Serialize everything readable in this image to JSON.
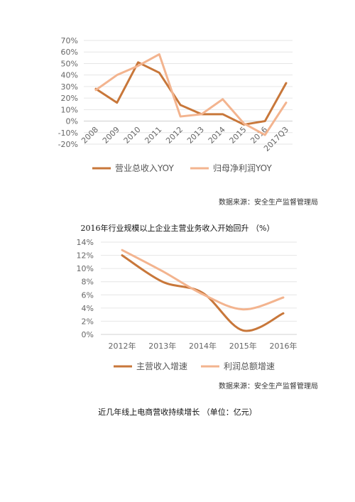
{
  "chart_data": [
    {
      "type": "line",
      "categories": [
        "2008",
        "2009",
        "2010",
        "2011",
        "2012",
        "2013",
        "2014",
        "2015",
        "2016",
        "2017Q3"
      ],
      "series": [
        {
          "name": "营业总收入YOY",
          "color": "#c8773a",
          "values": [
            28,
            16,
            51,
            42,
            14,
            6,
            6,
            -3,
            0,
            33
          ]
        },
        {
          "name": "归母净利润YOY",
          "color": "#f3b48f",
          "values": [
            27,
            40,
            48,
            58,
            4,
            6,
            19,
            -2,
            -12,
            16
          ]
        }
      ],
      "yticks": [
        "70%",
        "60%",
        "50%",
        "40%",
        "30%",
        "20%",
        "10%",
        "0%",
        "-10%",
        "-20%"
      ],
      "ylim": [
        -20,
        70
      ],
      "legend_position": "bottom"
    },
    {
      "type": "line",
      "categories": [
        "2012年",
        "2013年",
        "2014年",
        "2015年",
        "2016年"
      ],
      "series": [
        {
          "name": "主营收入增速",
          "color": "#c8773a",
          "values": [
            12.0,
            8.0,
            6.3,
            0.6,
            3.2
          ]
        },
        {
          "name": "利润总额增速",
          "color": "#f3b48f",
          "values": [
            12.8,
            9.6,
            6.1,
            3.8,
            5.6
          ]
        }
      ],
      "yticks": [
        "14%",
        "12%",
        "10%",
        "8%",
        "6%",
        "4%",
        "2%",
        "0%"
      ],
      "ylim": [
        0,
        14
      ],
      "legend_position": "bottom"
    }
  ],
  "texts": {
    "source1": "数据来源：安全生产监督管理局",
    "caption1": "2016年行业规模以上企业主营业务收入开始回升 （%）",
    "source2": "数据来源：安全生产监督管理局",
    "caption2": "近几年线上电商营收持续增长 （单位：亿元）"
  }
}
